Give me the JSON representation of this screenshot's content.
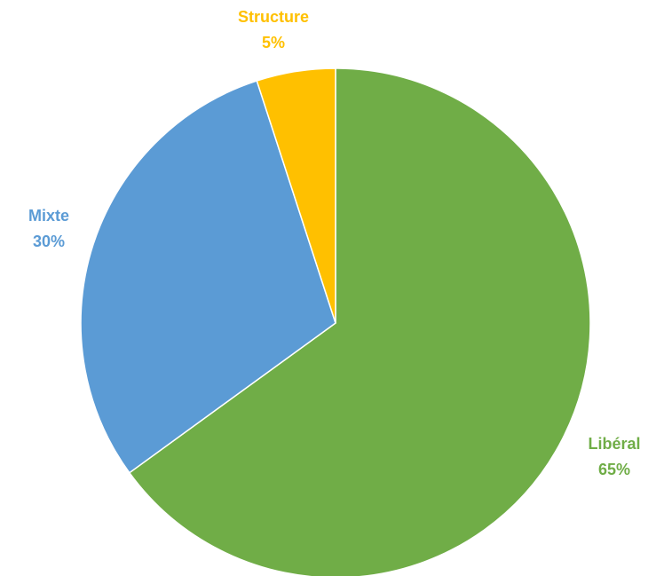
{
  "chart_data": {
    "type": "pie",
    "slices": [
      {
        "label": "Libéral",
        "value": 65,
        "value_label": "65%",
        "color": "#70AD47"
      },
      {
        "label": "Mixte",
        "value": 30,
        "value_label": "30%",
        "color": "#5B9BD5"
      },
      {
        "label": "Structure",
        "value": 5,
        "value_label": "5%",
        "color": "#FFC000"
      }
    ],
    "start": "12 o'clock",
    "direction": "clockwise",
    "legend": "none",
    "data_labels": "outside, category name and percentage"
  }
}
